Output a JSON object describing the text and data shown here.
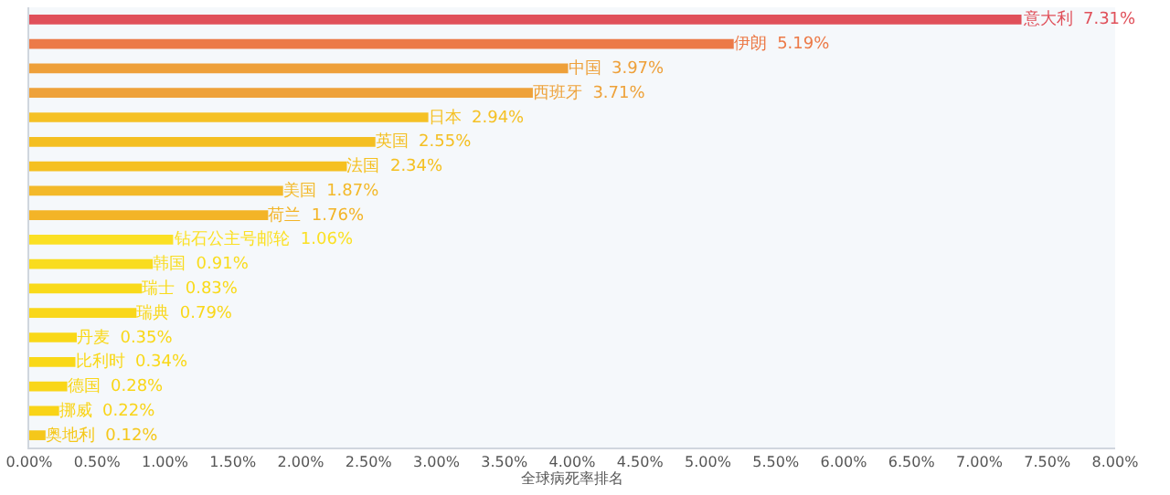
{
  "chart_data": {
    "type": "bar",
    "orientation": "horizontal",
    "xlabel": "全球病死率排名",
    "categories": [
      "意大利",
      "伊朗",
      "中国",
      "西班牙",
      "日本",
      "英国",
      "法国",
      "美国",
      "荷兰",
      "钻石公主号邮轮",
      "韩国",
      "瑞士",
      "瑞典",
      "丹麦",
      "比利时",
      "德国",
      "挪威",
      "奥地利"
    ],
    "values": [
      7.31,
      5.19,
      3.97,
      3.71,
      2.94,
      2.55,
      2.34,
      1.87,
      1.76,
      1.06,
      0.91,
      0.83,
      0.79,
      0.35,
      0.34,
      0.28,
      0.22,
      0.12
    ],
    "value_labels": [
      "7.31%",
      "5.19%",
      "3.97%",
      "3.71%",
      "2.94%",
      "2.55%",
      "2.34%",
      "1.87%",
      "1.76%",
      "1.06%",
      "0.91%",
      "0.83%",
      "0.79%",
      "0.35%",
      "0.34%",
      "0.28%",
      "0.22%",
      "0.12%"
    ],
    "colors": [
      "#e0505a",
      "#ec7a48",
      "#eea03a",
      "#eea23a",
      "#f5c125",
      "#f4bf22",
      "#f5c020",
      "#f3b92a",
      "#f3b427",
      "#fbe024",
      "#f9dc1e",
      "#f9da1a",
      "#f9d71a",
      "#f9d818",
      "#f9d818",
      "#f9d618",
      "#f9d418",
      "#f5c71a"
    ],
    "xlim": [
      0,
      8
    ],
    "xticks": [
      {
        "value": 0,
        "label": "0.00%"
      },
      {
        "value": 0.5,
        "label": "0.50%"
      },
      {
        "value": 1,
        "label": "1.00%"
      },
      {
        "value": 1.5,
        "label": "1.50%"
      },
      {
        "value": 2,
        "label": "2.00%"
      },
      {
        "value": 2.5,
        "label": "2.50%"
      },
      {
        "value": 3,
        "label": "3.00%"
      },
      {
        "value": 3.5,
        "label": "3.50%"
      },
      {
        "value": 4,
        "label": "4.00%"
      },
      {
        "value": 4.5,
        "label": "4.50%"
      },
      {
        "value": 5,
        "label": "5.00%"
      },
      {
        "value": 5.5,
        "label": "5.50%"
      },
      {
        "value": 6,
        "label": "6.00%"
      },
      {
        "value": 6.5,
        "label": "6.50%"
      },
      {
        "value": 7,
        "label": "7.00%"
      },
      {
        "value": 7.5,
        "label": "7.50%"
      },
      {
        "value": 8,
        "label": "8.00%"
      }
    ],
    "tick_labels": "x"
  }
}
